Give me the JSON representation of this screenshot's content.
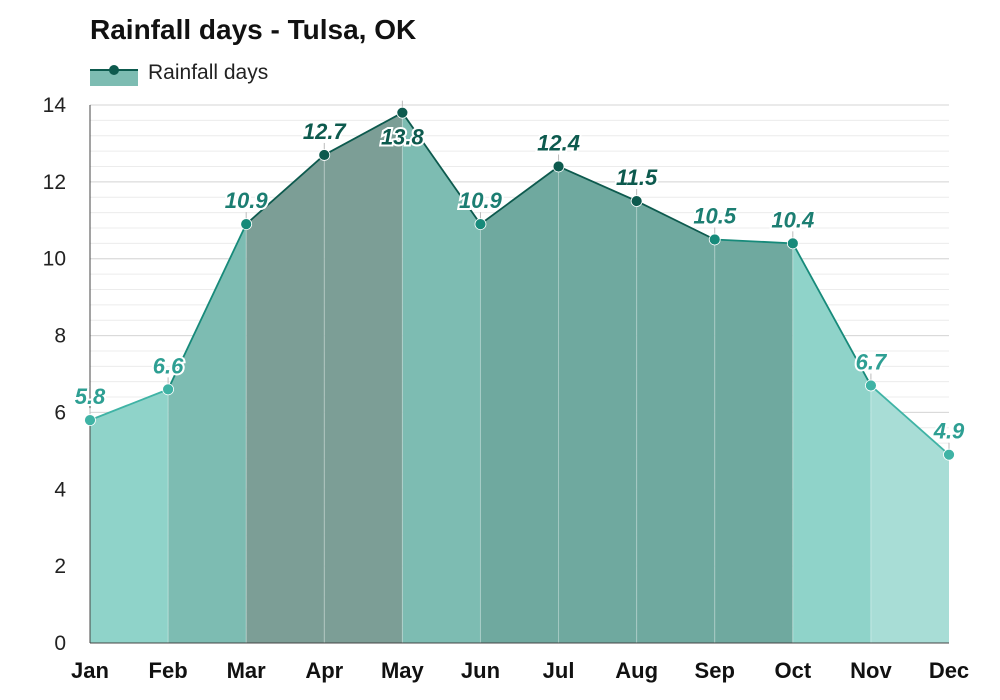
{
  "title": "Rainfall days - Tulsa, OK",
  "legend": {
    "label": "Rainfall days"
  },
  "colors": {
    "band_light": "#8fd3c9",
    "band_mid": "#7dbcb2",
    "band_dark": "#6fa99f",
    "band_darkest": "#7c9e96",
    "band_pale": "#a8ddd6",
    "line_dark": "#0d5a4e",
    "line_mid": "#178a7a",
    "line_light": "#3fb3a5",
    "label_dark": "#0d5a4e",
    "label_mid": "#1c7e72",
    "label_light": "#2e9f93"
  },
  "chart_data": {
    "type": "area",
    "title": "Rainfall days - Tulsa, OK",
    "xlabel": "",
    "ylabel": "",
    "categories": [
      "Jan",
      "Feb",
      "Mar",
      "Apr",
      "May",
      "Jun",
      "Jul",
      "Aug",
      "Sep",
      "Oct",
      "Nov",
      "Dec"
    ],
    "series": [
      {
        "name": "Rainfall days",
        "values": [
          5.8,
          6.6,
          10.9,
          12.7,
          13.8,
          10.9,
          12.4,
          11.5,
          10.5,
          10.4,
          6.7,
          4.9
        ]
      }
    ],
    "data_labels": [
      "5.8",
      "6.6",
      "10.9",
      "12.7",
      "13.8",
      "10.9",
      "12.4",
      "11.5",
      "10.5",
      "10.4",
      "6.7",
      "4.9"
    ],
    "ylim": [
      0,
      14
    ],
    "yticks": [
      0,
      2,
      4,
      6,
      8,
      10,
      12,
      14
    ],
    "ytick_labels": [
      "0",
      "2",
      "4",
      "6",
      "8",
      "10",
      "12",
      "14"
    ],
    "grid": true,
    "legend_position": "top-left"
  }
}
